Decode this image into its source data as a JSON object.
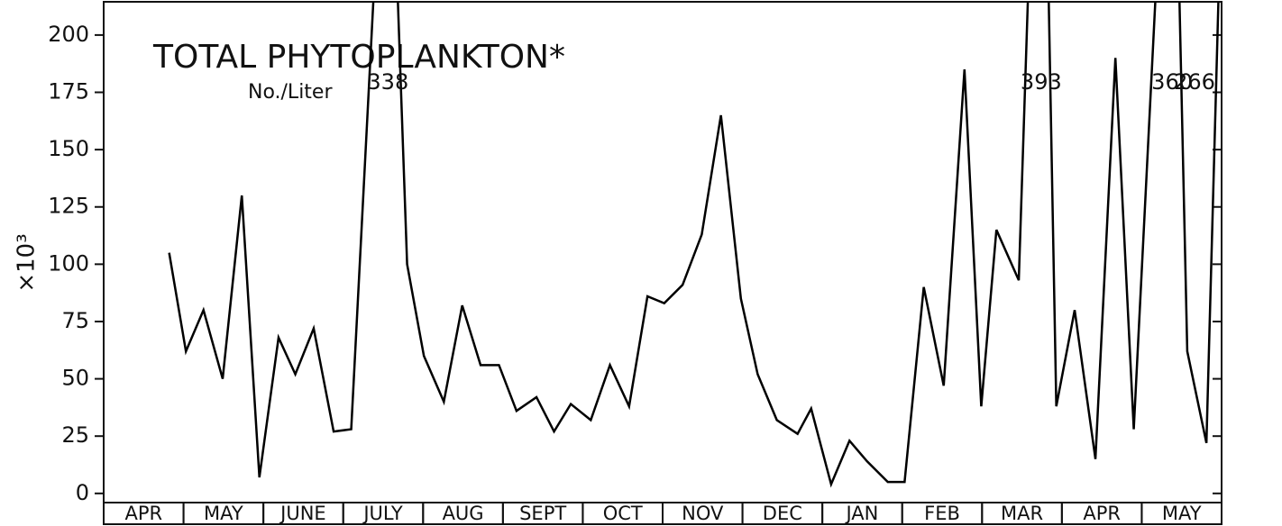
{
  "chart_data": {
    "type": "line",
    "title": "TOTAL PHYTOPLANKTON*",
    "subtitle": "No./Liter",
    "y_label": "×10³",
    "categories": [
      "APR",
      "MAY",
      "JUNE",
      "JULY",
      "AUG",
      "SEPT",
      "OCT",
      "NOV",
      "DEC",
      "JAN",
      "FEB",
      "MAR",
      "APR",
      "MAY"
    ],
    "xlim": [
      0,
      14
    ],
    "ylim": [
      -4,
      214.5
    ],
    "yticks": [
      0,
      25,
      50,
      75,
      100,
      125,
      150,
      175,
      200
    ],
    "series": [
      {
        "name": "Total phytoplankton",
        "color": "#000000",
        "x": [
          0.82,
          1.03,
          1.25,
          1.49,
          1.73,
          1.95,
          2.19,
          2.4,
          2.63,
          2.88,
          3.1,
          3.56,
          3.8,
          4.01,
          4.26,
          4.49,
          4.72,
          4.95,
          5.17,
          5.42,
          5.64,
          5.85,
          6.1,
          6.34,
          6.58,
          6.81,
          7.02,
          7.25,
          7.49,
          7.73,
          7.98,
          8.19,
          8.43,
          8.69,
          8.86,
          9.11,
          9.34,
          9.56,
          9.82,
          10.03,
          10.27,
          10.52,
          10.78,
          10.99,
          11.18,
          11.46,
          11.74,
          11.93,
          12.16,
          12.42,
          12.67,
          12.9,
          13.38,
          13.57,
          13.81,
          14.0
        ],
        "values": [
          105,
          62,
          80,
          50,
          130,
          7,
          68,
          52,
          72,
          27,
          28,
          338,
          100,
          60,
          40,
          82,
          56,
          56,
          36,
          42,
          27,
          39,
          32,
          56,
          38,
          86,
          83,
          91,
          113,
          165,
          85,
          52,
          32,
          26,
          37,
          4,
          23,
          14,
          5,
          5,
          90,
          47,
          185,
          38,
          115,
          93,
          393,
          38,
          80,
          15,
          190,
          28,
          360,
          62,
          22,
          266
        ]
      }
    ]
  }
}
